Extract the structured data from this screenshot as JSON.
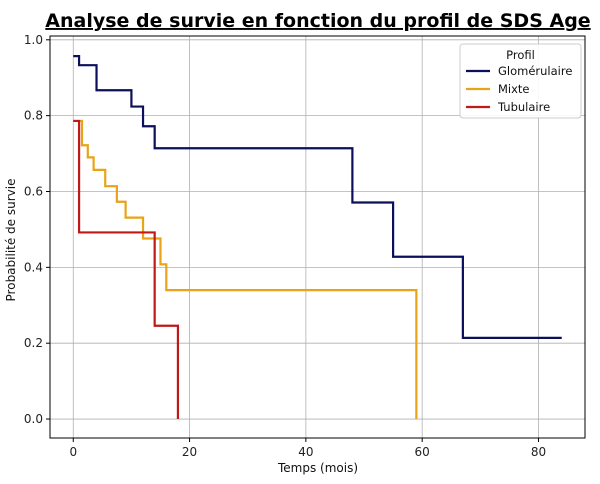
{
  "chart_data": {
    "type": "line",
    "step": true,
    "title": "Analyse de survie en fonction du profil de SDS Age",
    "xlabel": "Temps (mois)",
    "ylabel": "Probabilité de survie",
    "xlim": [
      -4,
      88
    ],
    "ylim": [
      -0.05,
      1.01
    ],
    "xticks": [
      0,
      20,
      40,
      60,
      80
    ],
    "yticks": [
      0.0,
      0.2,
      0.4,
      0.6,
      0.8,
      1.0
    ],
    "xtick_labels": [
      "0",
      "20",
      "40",
      "60",
      "80"
    ],
    "ytick_labels": [
      "0.0",
      "0.2",
      "0.4",
      "0.6",
      "0.8",
      "1.0"
    ],
    "grid": true,
    "legend": {
      "title": "Profil",
      "placement": "top-right"
    },
    "series": [
      {
        "name": "Glomérulaire",
        "color": "#0b0f5c",
        "points": [
          [
            0,
            0.957
          ],
          [
            1,
            0.957
          ],
          [
            1,
            0.933
          ],
          [
            4,
            0.933
          ],
          [
            4,
            0.867
          ],
          [
            10,
            0.867
          ],
          [
            10,
            0.824
          ],
          [
            12,
            0.824
          ],
          [
            12,
            0.772
          ],
          [
            14,
            0.772
          ],
          [
            14,
            0.714
          ],
          [
            48,
            0.714
          ],
          [
            48,
            0.571
          ],
          [
            55,
            0.571
          ],
          [
            55,
            0.428
          ],
          [
            67,
            0.428
          ],
          [
            67,
            0.214
          ],
          [
            84,
            0.214
          ]
        ]
      },
      {
        "name": "Mixte",
        "color": "#e8a317",
        "points": [
          [
            0,
            0.786
          ],
          [
            1.5,
            0.786
          ],
          [
            1.5,
            0.722
          ],
          [
            2.5,
            0.722
          ],
          [
            2.5,
            0.69
          ],
          [
            3.5,
            0.69
          ],
          [
            3.5,
            0.657
          ],
          [
            5.5,
            0.657
          ],
          [
            5.5,
            0.614
          ],
          [
            7.5,
            0.614
          ],
          [
            7.5,
            0.573
          ],
          [
            9,
            0.573
          ],
          [
            9,
            0.531
          ],
          [
            12,
            0.531
          ],
          [
            12,
            0.476
          ],
          [
            15,
            0.476
          ],
          [
            15,
            0.408
          ],
          [
            16,
            0.408
          ],
          [
            16,
            0.34
          ],
          [
            59,
            0.34
          ],
          [
            59,
            0.0
          ]
        ]
      },
      {
        "name": "Tubulaire",
        "color": "#c01818",
        "points": [
          [
            0,
            0.786
          ],
          [
            1,
            0.786
          ],
          [
            1,
            0.492
          ],
          [
            14,
            0.492
          ],
          [
            14,
            0.246
          ],
          [
            18,
            0.246
          ],
          [
            18,
            0.0
          ]
        ]
      }
    ]
  }
}
